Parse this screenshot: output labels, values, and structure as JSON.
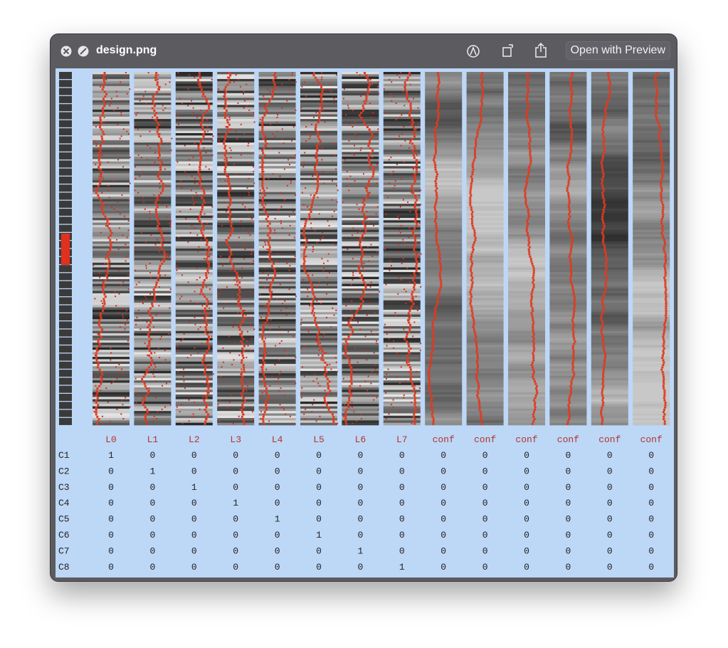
{
  "window": {
    "title": "design.png",
    "open_button": "Open with Preview"
  },
  "table": {
    "columns": [
      "L0",
      "L1",
      "L2",
      "L3",
      "L4",
      "L5",
      "L6",
      "L7",
      "conf",
      "conf",
      "conf",
      "conf",
      "conf",
      "conf"
    ],
    "rows": [
      {
        "label": "C1",
        "values": [
          1,
          0,
          0,
          0,
          0,
          0,
          0,
          0,
          0,
          0,
          0,
          0,
          0,
          0
        ]
      },
      {
        "label": "C2",
        "values": [
          0,
          1,
          0,
          0,
          0,
          0,
          0,
          0,
          0,
          0,
          0,
          0,
          0,
          0
        ]
      },
      {
        "label": "C3",
        "values": [
          0,
          0,
          1,
          0,
          0,
          0,
          0,
          0,
          0,
          0,
          0,
          0,
          0,
          0
        ]
      },
      {
        "label": "C4",
        "values": [
          0,
          0,
          0,
          1,
          0,
          0,
          0,
          0,
          0,
          0,
          0,
          0,
          0,
          0
        ]
      },
      {
        "label": "C5",
        "values": [
          0,
          0,
          0,
          0,
          1,
          0,
          0,
          0,
          0,
          0,
          0,
          0,
          0,
          0
        ]
      },
      {
        "label": "C6",
        "values": [
          0,
          0,
          0,
          0,
          0,
          1,
          0,
          0,
          0,
          0,
          0,
          0,
          0,
          0
        ]
      },
      {
        "label": "C7",
        "values": [
          0,
          0,
          0,
          0,
          0,
          0,
          1,
          0,
          0,
          0,
          0,
          0,
          0,
          0
        ]
      },
      {
        "label": "C8",
        "values": [
          0,
          0,
          0,
          0,
          0,
          0,
          0,
          1,
          0,
          0,
          0,
          0,
          0,
          0
        ]
      }
    ]
  }
}
